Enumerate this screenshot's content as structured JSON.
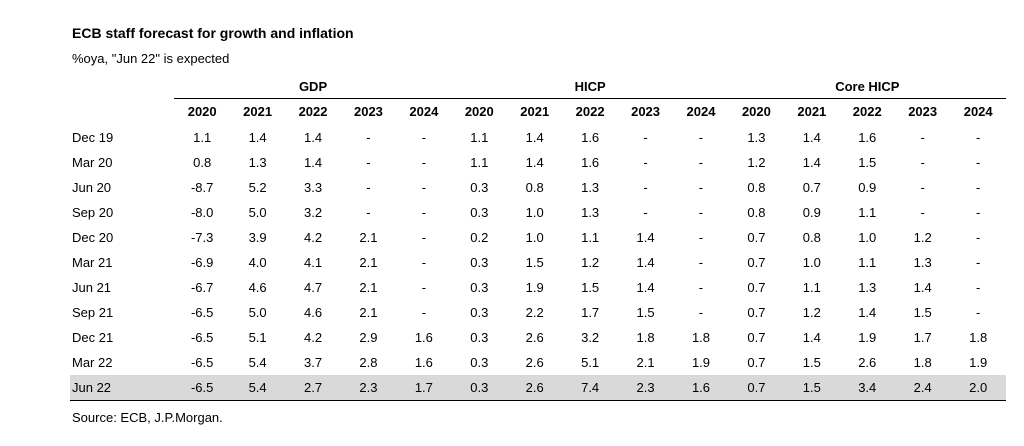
{
  "title": "ECB staff forecast for growth and inflation",
  "subtitle": "%oya, \"Jun 22\" is expected",
  "source": "Source: ECB, J.P.Morgan.",
  "groups": [
    "GDP",
    "HICP",
    "Core HICP"
  ],
  "years": [
    "2020",
    "2021",
    "2022",
    "2023",
    "2024",
    "2020",
    "2021",
    "2022",
    "2023",
    "2024",
    "2020",
    "2021",
    "2022",
    "2023",
    "2024"
  ],
  "rows": [
    {
      "label": "Dec 19",
      "values": [
        "1.1",
        "1.4",
        "1.4",
        "-",
        "-",
        "1.1",
        "1.4",
        "1.6",
        "-",
        "-",
        "1.3",
        "1.4",
        "1.6",
        "-",
        "-"
      ]
    },
    {
      "label": "Mar 20",
      "values": [
        "0.8",
        "1.3",
        "1.4",
        "-",
        "-",
        "1.1",
        "1.4",
        "1.6",
        "-",
        "-",
        "1.2",
        "1.4",
        "1.5",
        "-",
        "-"
      ]
    },
    {
      "label": "Jun 20",
      "values": [
        "-8.7",
        "5.2",
        "3.3",
        "-",
        "-",
        "0.3",
        "0.8",
        "1.3",
        "-",
        "-",
        "0.8",
        "0.7",
        "0.9",
        "-",
        "-"
      ]
    },
    {
      "label": "Sep 20",
      "values": [
        "-8.0",
        "5.0",
        "3.2",
        "-",
        "-",
        "0.3",
        "1.0",
        "1.3",
        "-",
        "-",
        "0.8",
        "0.9",
        "1.1",
        "-",
        "-"
      ]
    },
    {
      "label": "Dec 20",
      "values": [
        "-7.3",
        "3.9",
        "4.2",
        "2.1",
        "-",
        "0.2",
        "1.0",
        "1.1",
        "1.4",
        "-",
        "0.7",
        "0.8",
        "1.0",
        "1.2",
        "-"
      ]
    },
    {
      "label": "Mar 21",
      "values": [
        "-6.9",
        "4.0",
        "4.1",
        "2.1",
        "-",
        "0.3",
        "1.5",
        "1.2",
        "1.4",
        "-",
        "0.7",
        "1.0",
        "1.1",
        "1.3",
        "-"
      ]
    },
    {
      "label": "Jun 21",
      "values": [
        "-6.7",
        "4.6",
        "4.7",
        "2.1",
        "-",
        "0.3",
        "1.9",
        "1.5",
        "1.4",
        "-",
        "0.7",
        "1.1",
        "1.3",
        "1.4",
        "-"
      ]
    },
    {
      "label": "Sep 21",
      "values": [
        "-6.5",
        "5.0",
        "4.6",
        "2.1",
        "-",
        "0.3",
        "2.2",
        "1.7",
        "1.5",
        "-",
        "0.7",
        "1.2",
        "1.4",
        "1.5",
        "-"
      ]
    },
    {
      "label": "Dec 21",
      "values": [
        "-6.5",
        "5.1",
        "4.2",
        "2.9",
        "1.6",
        "0.3",
        "2.6",
        "3.2",
        "1.8",
        "1.8",
        "0.7",
        "1.4",
        "1.9",
        "1.7",
        "1.8"
      ]
    },
    {
      "label": "Mar 22",
      "values": [
        "-6.5",
        "5.4",
        "3.7",
        "2.8",
        "1.6",
        "0.3",
        "2.6",
        "5.1",
        "2.1",
        "1.9",
        "0.7",
        "1.5",
        "2.6",
        "1.8",
        "1.9"
      ]
    },
    {
      "label": "Jun 22",
      "values": [
        "-6.5",
        "5.4",
        "2.7",
        "2.3",
        "1.7",
        "0.3",
        "2.6",
        "7.4",
        "2.3",
        "1.6",
        "0.7",
        "1.5",
        "3.4",
        "2.4",
        "2.0"
      ]
    }
  ],
  "colors": {
    "highlight_row": "#d9d9d9"
  }
}
